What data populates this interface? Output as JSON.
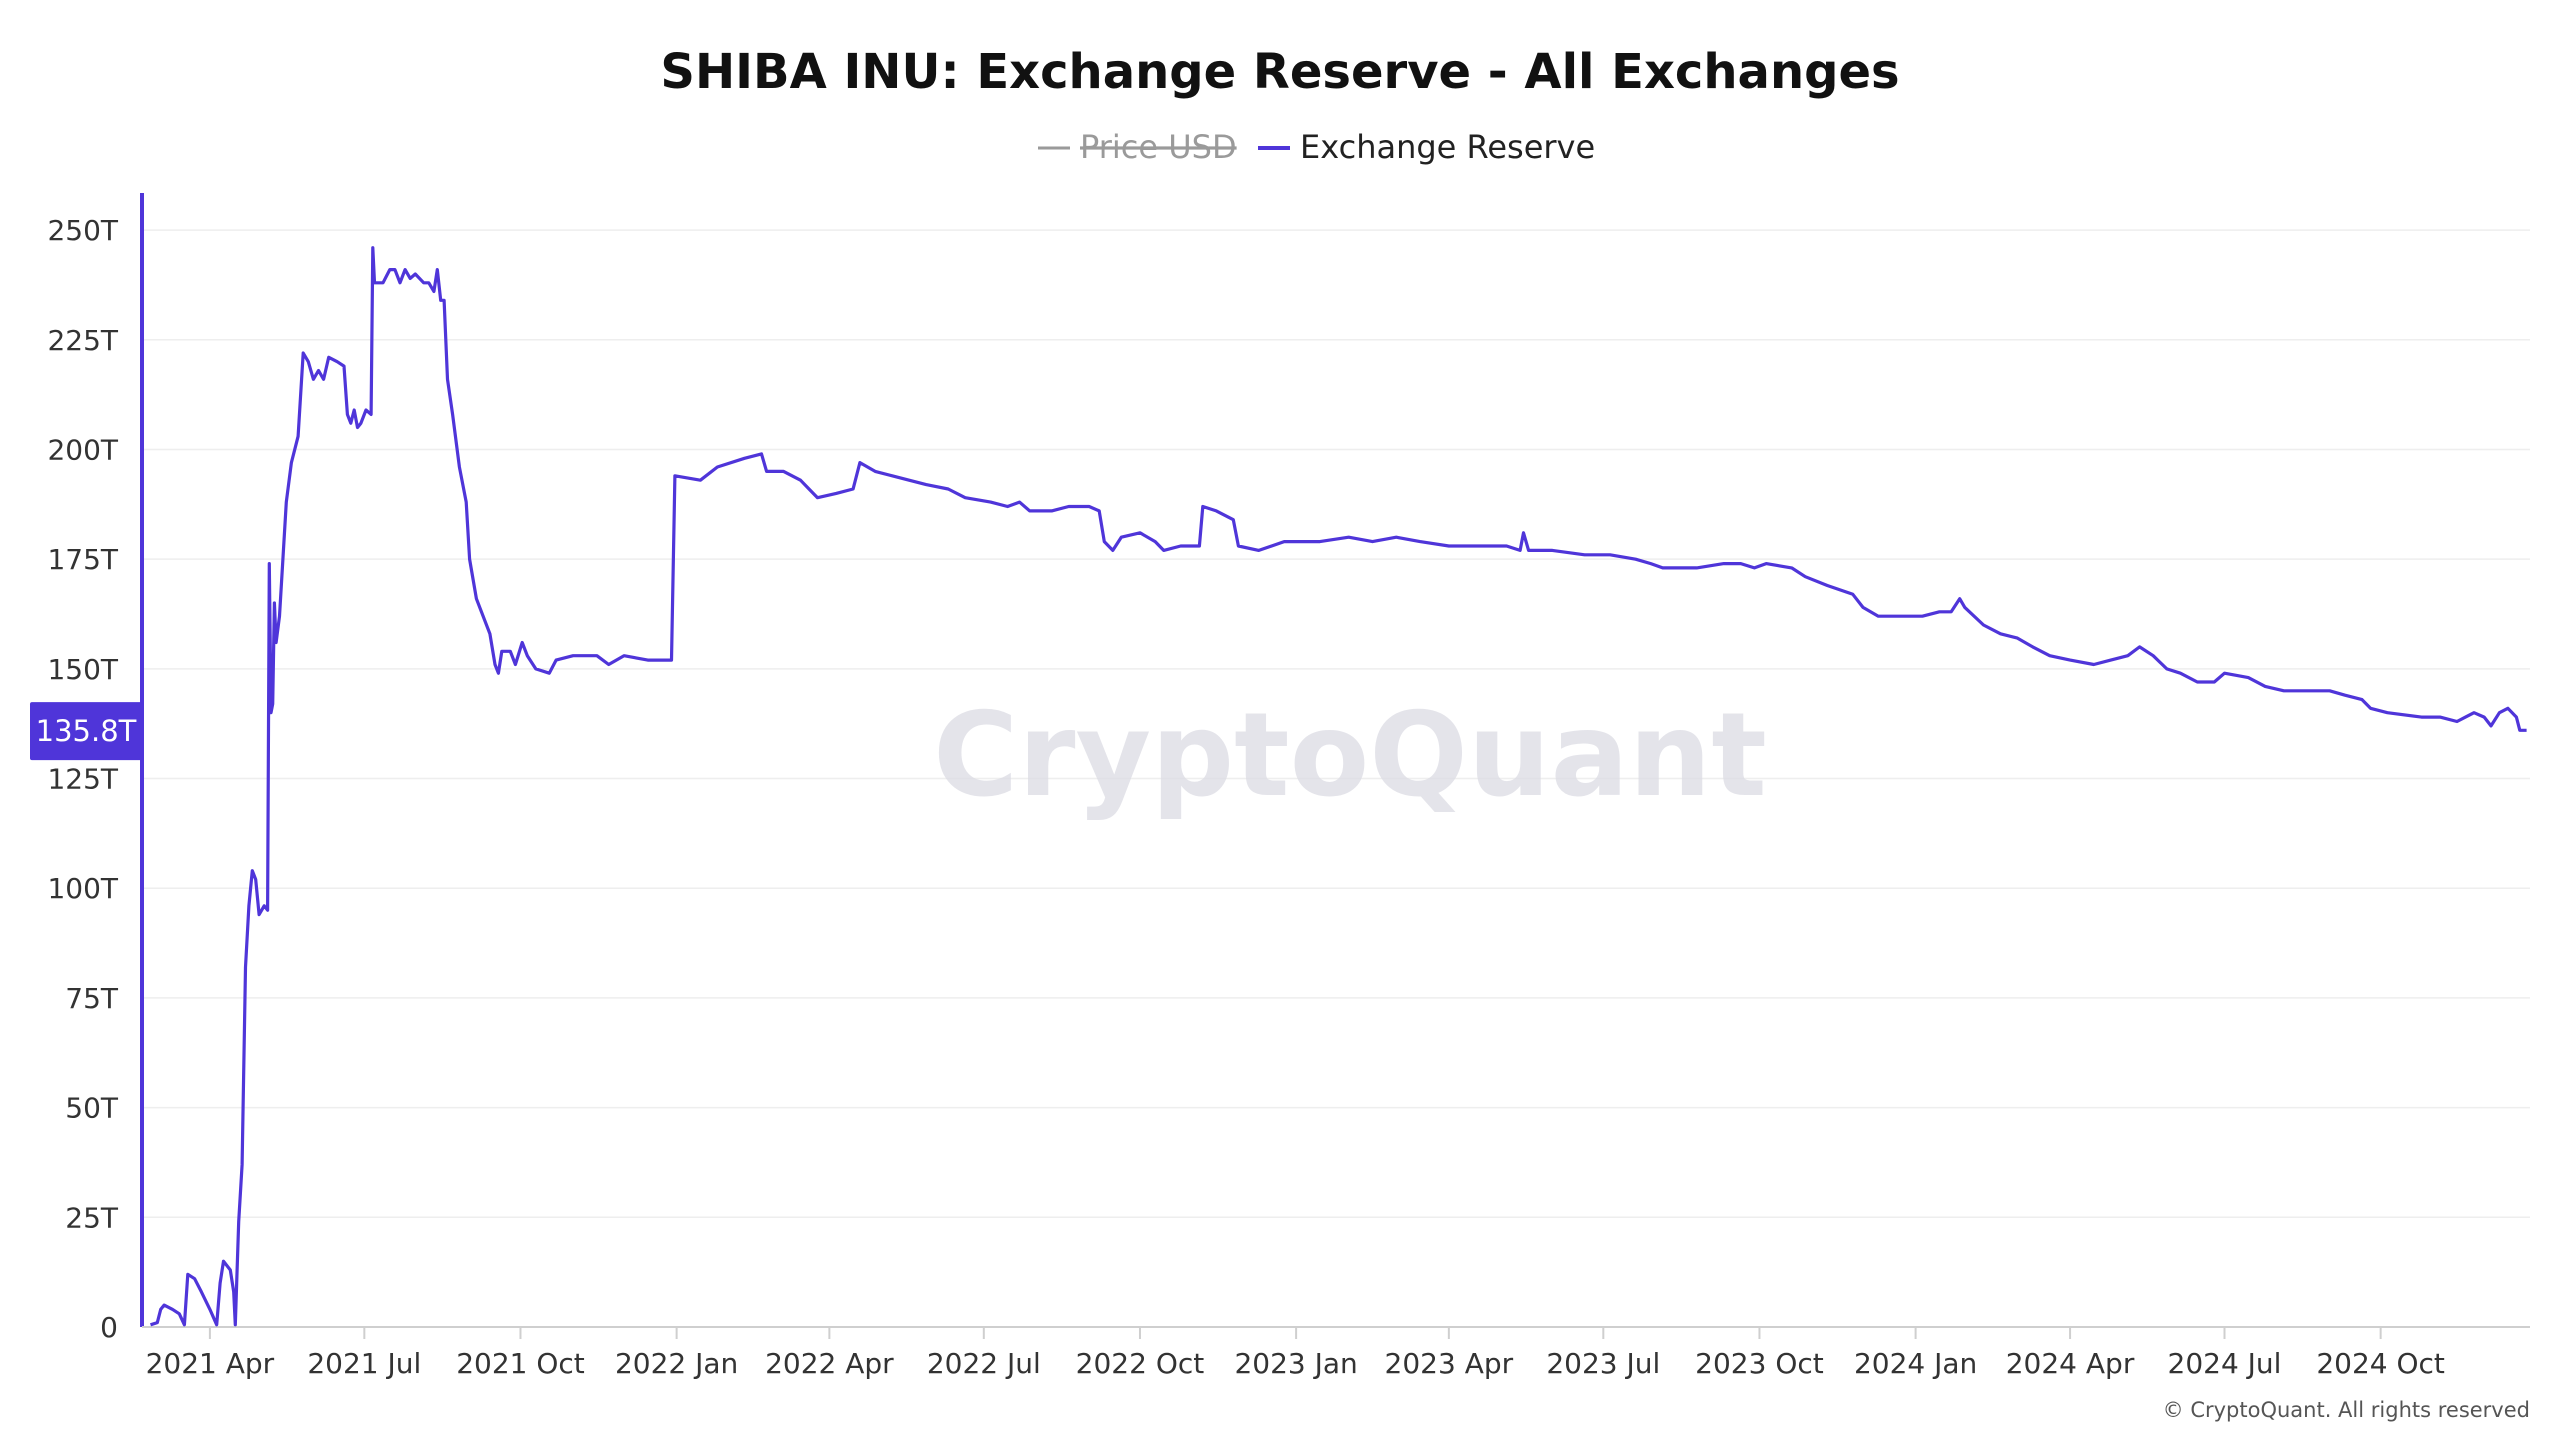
{
  "colors": {
    "series": "#4f35d9",
    "price_legend": "#9a9a9a",
    "grid": "#eeeeee",
    "axis": "#cfcfcf",
    "value_box": "#4f35d9"
  },
  "watermark": "CryptoQuant",
  "copyright": "© CryptoQuant. All rights reserved",
  "current_value_label": "135.8T",
  "chart_data": {
    "type": "line",
    "title": "SHIBA INU: Exchange Reserve - All Exchanges",
    "legend": [
      {
        "name": "Price USD",
        "hidden": true
      },
      {
        "name": "Exchange Reserve",
        "hidden": false
      }
    ],
    "legend_position": "top-center",
    "grid": true,
    "ylim": [
      0,
      258
    ],
    "yticks": [
      0,
      25,
      50,
      75,
      100,
      125,
      150,
      175,
      200,
      225,
      250
    ],
    "ytick_labels": [
      "0",
      "25T",
      "50T",
      "75T",
      "100T",
      "125T",
      "150T",
      "175T",
      "200T",
      "225T",
      "250T"
    ],
    "xlim": [
      "2021-02-20",
      "2024-12-28"
    ],
    "xticks": [
      "2021-04-01",
      "2021-07-01",
      "2021-10-01",
      "2022-01-01",
      "2022-04-01",
      "2022-07-01",
      "2022-10-01",
      "2023-01-01",
      "2023-04-01",
      "2023-07-01",
      "2023-10-01",
      "2024-01-01",
      "2024-04-01",
      "2024-07-01",
      "2024-10-01"
    ],
    "xtick_labels": [
      "2021 Apr",
      "2021 Jul",
      "2021 Oct",
      "2022 Jan",
      "2022 Apr",
      "2022 Jul",
      "2022 Oct",
      "2023 Jan",
      "2023 Apr",
      "2023 Jul",
      "2023 Oct",
      "2024 Jan",
      "2024 Apr",
      "2024 Jul",
      "2024 Oct"
    ],
    "current_value": 135.8,
    "series": [
      {
        "name": "Exchange Reserve",
        "unit": "T",
        "points": [
          [
            "2021-02-25",
            0.5
          ],
          [
            "2021-03-01",
            1
          ],
          [
            "2021-03-03",
            4
          ],
          [
            "2021-03-05",
            5
          ],
          [
            "2021-03-10",
            4
          ],
          [
            "2021-03-14",
            3
          ],
          [
            "2021-03-17",
            0.5
          ],
          [
            "2021-03-19",
            12
          ],
          [
            "2021-03-23",
            11
          ],
          [
            "2021-03-27",
            8
          ],
          [
            "2021-04-01",
            4
          ],
          [
            "2021-04-05",
            0.5
          ],
          [
            "2021-04-07",
            10
          ],
          [
            "2021-04-09",
            15
          ],
          [
            "2021-04-13",
            13
          ],
          [
            "2021-04-15",
            8
          ],
          [
            "2021-04-16",
            0.5
          ],
          [
            "2021-04-18",
            24
          ],
          [
            "2021-04-20",
            37
          ],
          [
            "2021-04-22",
            82
          ],
          [
            "2021-04-24",
            96
          ],
          [
            "2021-04-26",
            104
          ],
          [
            "2021-04-28",
            102
          ],
          [
            "2021-04-30",
            94
          ],
          [
            "2021-05-03",
            96
          ],
          [
            "2021-05-05",
            95
          ],
          [
            "2021-05-06",
            174
          ],
          [
            "2021-05-07",
            140
          ],
          [
            "2021-05-08",
            142
          ],
          [
            "2021-05-09",
            165
          ],
          [
            "2021-05-10",
            156
          ],
          [
            "2021-05-12",
            162
          ],
          [
            "2021-05-14",
            175
          ],
          [
            "2021-05-16",
            188
          ],
          [
            "2021-05-19",
            197
          ],
          [
            "2021-05-23",
            203
          ],
          [
            "2021-05-26",
            222
          ],
          [
            "2021-05-29",
            220
          ],
          [
            "2021-06-01",
            216
          ],
          [
            "2021-06-04",
            218
          ],
          [
            "2021-06-07",
            216
          ],
          [
            "2021-06-10",
            221
          ],
          [
            "2021-06-15",
            220
          ],
          [
            "2021-06-19",
            219
          ],
          [
            "2021-06-21",
            208
          ],
          [
            "2021-06-23",
            206
          ],
          [
            "2021-06-25",
            209
          ],
          [
            "2021-06-27",
            205
          ],
          [
            "2021-06-29",
            206
          ],
          [
            "2021-07-02",
            209
          ],
          [
            "2021-07-05",
            208
          ],
          [
            "2021-07-06",
            246
          ],
          [
            "2021-07-07",
            238
          ],
          [
            "2021-07-12",
            238
          ],
          [
            "2021-07-16",
            241
          ],
          [
            "2021-07-19",
            241
          ],
          [
            "2021-07-22",
            238
          ],
          [
            "2021-07-25",
            241
          ],
          [
            "2021-07-28",
            239
          ],
          [
            "2021-07-31",
            240
          ],
          [
            "2021-08-05",
            238
          ],
          [
            "2021-08-08",
            238
          ],
          [
            "2021-08-11",
            236
          ],
          [
            "2021-08-13",
            241
          ],
          [
            "2021-08-15",
            234
          ],
          [
            "2021-08-17",
            234
          ],
          [
            "2021-08-19",
            216
          ],
          [
            "2021-08-22",
            208
          ],
          [
            "2021-08-26",
            196
          ],
          [
            "2021-08-30",
            188
          ],
          [
            "2021-09-01",
            175
          ],
          [
            "2021-09-05",
            166
          ],
          [
            "2021-09-10",
            161
          ],
          [
            "2021-09-13",
            158
          ],
          [
            "2021-09-16",
            151
          ],
          [
            "2021-09-18",
            149
          ],
          [
            "2021-09-20",
            154
          ],
          [
            "2021-09-25",
            154
          ],
          [
            "2021-09-28",
            151
          ],
          [
            "2021-10-02",
            156
          ],
          [
            "2021-10-05",
            153
          ],
          [
            "2021-10-10",
            150
          ],
          [
            "2021-10-18",
            149
          ],
          [
            "2021-10-22",
            152
          ],
          [
            "2021-11-01",
            153
          ],
          [
            "2021-11-15",
            153
          ],
          [
            "2021-11-22",
            151
          ],
          [
            "2021-12-01",
            153
          ],
          [
            "2021-12-15",
            152
          ],
          [
            "2021-12-29",
            152
          ],
          [
            "2021-12-31",
            194
          ],
          [
            "2022-01-15",
            193
          ],
          [
            "2022-01-25",
            196
          ],
          [
            "2022-02-10",
            198
          ],
          [
            "2022-02-20",
            199
          ],
          [
            "2022-02-23",
            195
          ],
          [
            "2022-03-05",
            195
          ],
          [
            "2022-03-15",
            193
          ],
          [
            "2022-03-20",
            191
          ],
          [
            "2022-03-25",
            189
          ],
          [
            "2022-04-05",
            190
          ],
          [
            "2022-04-15",
            191
          ],
          [
            "2022-04-19",
            197
          ],
          [
            "2022-04-28",
            195
          ],
          [
            "2022-05-08",
            194
          ],
          [
            "2022-05-18",
            193
          ],
          [
            "2022-05-28",
            192
          ],
          [
            "2022-06-10",
            191
          ],
          [
            "2022-06-20",
            189
          ],
          [
            "2022-07-05",
            188
          ],
          [
            "2022-07-15",
            187
          ],
          [
            "2022-07-22",
            188
          ],
          [
            "2022-07-28",
            186
          ],
          [
            "2022-08-10",
            186
          ],
          [
            "2022-08-20",
            187
          ],
          [
            "2022-09-01",
            187
          ],
          [
            "2022-09-07",
            186
          ],
          [
            "2022-09-10",
            179
          ],
          [
            "2022-09-15",
            177
          ],
          [
            "2022-09-20",
            180
          ],
          [
            "2022-10-01",
            181
          ],
          [
            "2022-10-10",
            179
          ],
          [
            "2022-10-15",
            177
          ],
          [
            "2022-10-25",
            178
          ],
          [
            "2022-11-05",
            178
          ],
          [
            "2022-11-07",
            187
          ],
          [
            "2022-11-15",
            186
          ],
          [
            "2022-11-25",
            184
          ],
          [
            "2022-11-28",
            178
          ],
          [
            "2022-12-10",
            177
          ],
          [
            "2022-12-25",
            179
          ],
          [
            "2023-01-15",
            179
          ],
          [
            "2023-02-01",
            180
          ],
          [
            "2023-02-15",
            179
          ],
          [
            "2023-03-01",
            180
          ],
          [
            "2023-03-15",
            179
          ],
          [
            "2023-04-01",
            178
          ],
          [
            "2023-04-20",
            178
          ],
          [
            "2023-05-05",
            178
          ],
          [
            "2023-05-13",
            177
          ],
          [
            "2023-05-15",
            181
          ],
          [
            "2023-05-18",
            177
          ],
          [
            "2023-06-01",
            177
          ],
          [
            "2023-06-20",
            176
          ],
          [
            "2023-07-05",
            176
          ],
          [
            "2023-07-20",
            175
          ],
          [
            "2023-07-29",
            174
          ],
          [
            "2023-08-05",
            173
          ],
          [
            "2023-08-25",
            173
          ],
          [
            "2023-09-10",
            174
          ],
          [
            "2023-09-20",
            174
          ],
          [
            "2023-09-28",
            173
          ],
          [
            "2023-10-05",
            174
          ],
          [
            "2023-10-20",
            173
          ],
          [
            "2023-10-28",
            171
          ],
          [
            "2023-11-10",
            169
          ],
          [
            "2023-11-25",
            167
          ],
          [
            "2023-12-01",
            164
          ],
          [
            "2023-12-10",
            162
          ],
          [
            "2023-12-25",
            162
          ],
          [
            "2024-01-05",
            162
          ],
          [
            "2024-01-15",
            163
          ],
          [
            "2024-01-22",
            163
          ],
          [
            "2024-01-27",
            166
          ],
          [
            "2024-01-30",
            164
          ],
          [
            "2024-02-10",
            160
          ],
          [
            "2024-02-20",
            158
          ],
          [
            "2024-03-01",
            157
          ],
          [
            "2024-03-10",
            155
          ],
          [
            "2024-03-20",
            153
          ],
          [
            "2024-04-01",
            152
          ],
          [
            "2024-04-15",
            151
          ],
          [
            "2024-04-25",
            152
          ],
          [
            "2024-05-05",
            153
          ],
          [
            "2024-05-12",
            155
          ],
          [
            "2024-05-20",
            153
          ],
          [
            "2024-05-28",
            150
          ],
          [
            "2024-06-05",
            149
          ],
          [
            "2024-06-15",
            147
          ],
          [
            "2024-06-25",
            147
          ],
          [
            "2024-07-01",
            149
          ],
          [
            "2024-07-15",
            148
          ],
          [
            "2024-07-25",
            146
          ],
          [
            "2024-08-05",
            145
          ],
          [
            "2024-08-20",
            145
          ],
          [
            "2024-09-01",
            145
          ],
          [
            "2024-09-10",
            144
          ],
          [
            "2024-09-20",
            143
          ],
          [
            "2024-09-25",
            141
          ],
          [
            "2024-10-05",
            140
          ],
          [
            "2024-10-25",
            139
          ],
          [
            "2024-11-05",
            139
          ],
          [
            "2024-11-15",
            138
          ],
          [
            "2024-11-20",
            139
          ],
          [
            "2024-11-25",
            140
          ],
          [
            "2024-12-01",
            139
          ],
          [
            "2024-12-05",
            137
          ],
          [
            "2024-12-10",
            140
          ],
          [
            "2024-12-15",
            141
          ],
          [
            "2024-12-20",
            139
          ],
          [
            "2024-12-22",
            136
          ],
          [
            "2024-12-26",
            136
          ]
        ]
      }
    ]
  }
}
